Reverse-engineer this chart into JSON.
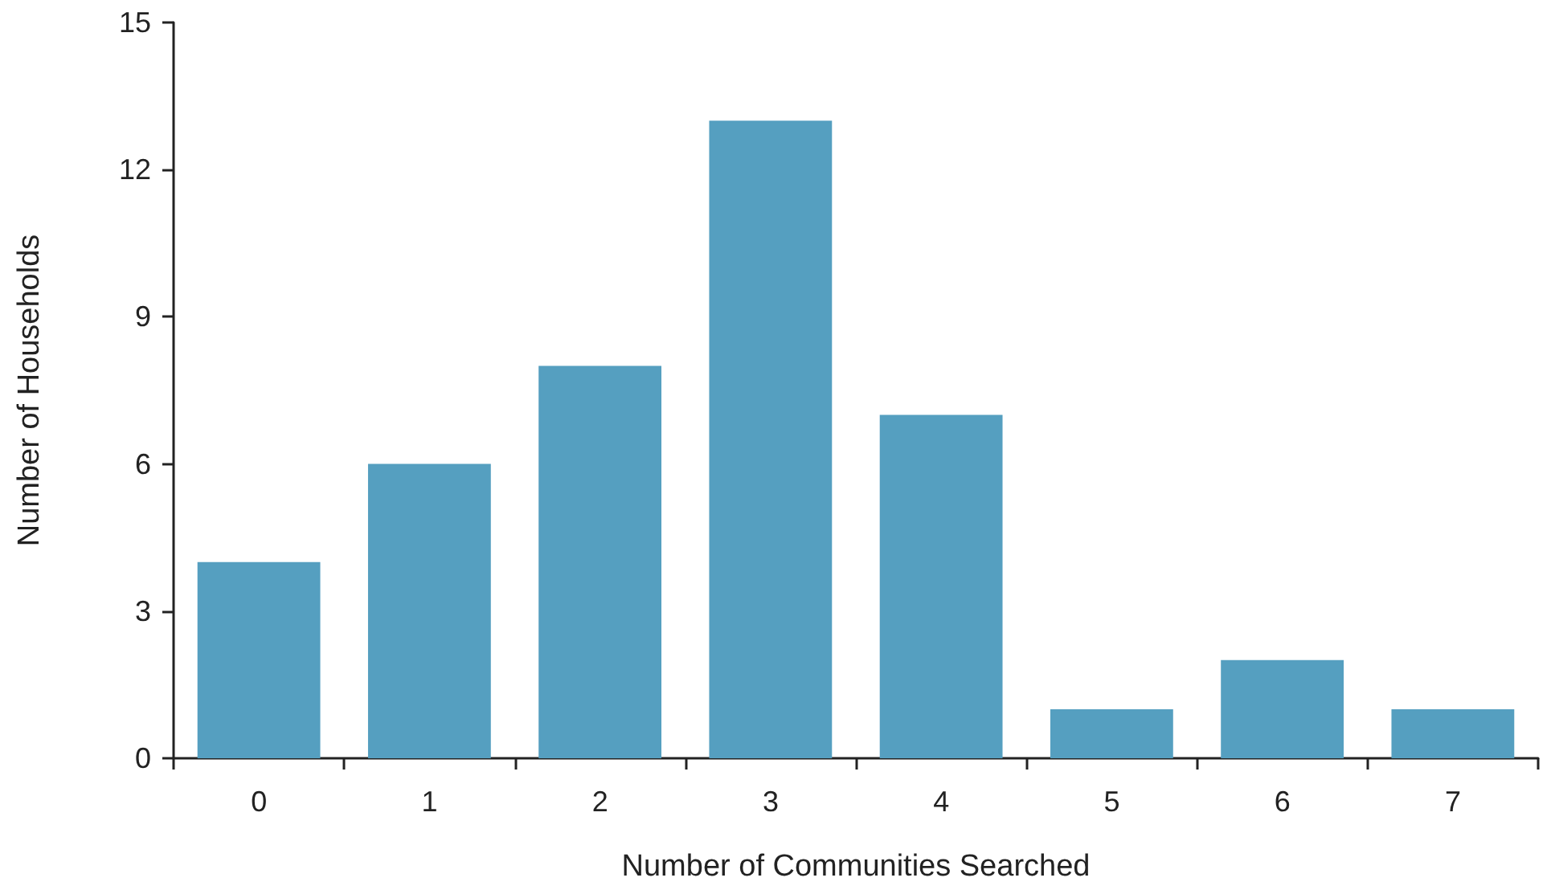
{
  "chart_data": {
    "type": "bar",
    "xlabel": "Number of Communities Searched",
    "ylabel": "Number of Households",
    "categories": [
      "0",
      "1",
      "2",
      "3",
      "4",
      "5",
      "6",
      "7"
    ],
    "values": [
      4,
      6,
      8,
      13,
      7,
      1,
      2,
      1
    ],
    "color": "#559fc0",
    "ylim": [
      0,
      15
    ],
    "yticks": [
      0,
      3,
      6,
      9,
      12,
      15
    ],
    "grid": false
  }
}
